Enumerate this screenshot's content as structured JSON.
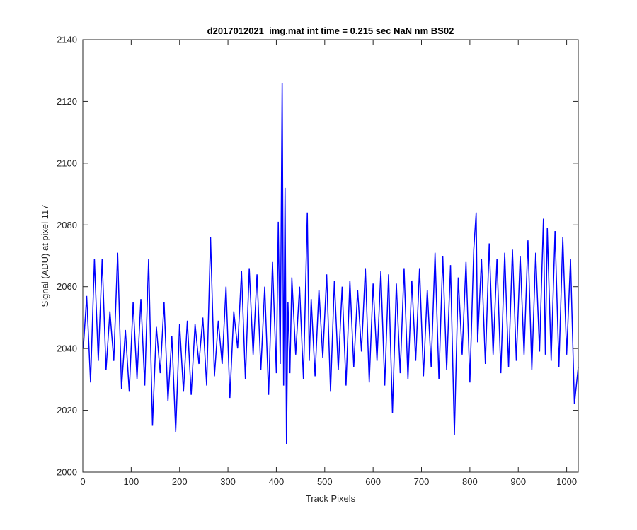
{
  "chart_data": {
    "type": "line",
    "title": "d2017012021_img.mat int time = 0.215 sec  NaN nm BS02",
    "xlabel": "Track Pixels",
    "ylabel": "Signal (ADU) at pixel 117",
    "xlim": [
      0,
      1024
    ],
    "ylim": [
      2000,
      2140
    ],
    "xticks": [
      0,
      100,
      200,
      300,
      400,
      500,
      600,
      700,
      800,
      900,
      1000
    ],
    "yticks": [
      2000,
      2020,
      2040,
      2060,
      2080,
      2100,
      2120,
      2140
    ],
    "grid": false,
    "series": [
      {
        "color": "#0000ff",
        "x": [
          1,
          8,
          16,
          24,
          32,
          40,
          48,
          56,
          64,
          72,
          80,
          88,
          96,
          104,
          112,
          120,
          128,
          136,
          144,
          152,
          160,
          168,
          176,
          184,
          192,
          200,
          208,
          216,
          224,
          232,
          240,
          248,
          256,
          264,
          272,
          280,
          288,
          296,
          304,
          312,
          320,
          328,
          336,
          344,
          352,
          360,
          368,
          376,
          384,
          392,
          400,
          404,
          408,
          412,
          415,
          418,
          421,
          424,
          428,
          432,
          440,
          448,
          456,
          464,
          468,
          472,
          480,
          488,
          496,
          504,
          512,
          520,
          528,
          536,
          544,
          552,
          560,
          568,
          576,
          584,
          592,
          600,
          608,
          616,
          624,
          632,
          640,
          648,
          656,
          664,
          672,
          680,
          688,
          696,
          704,
          712,
          720,
          728,
          736,
          744,
          752,
          760,
          768,
          776,
          784,
          792,
          800,
          808,
          813,
          816,
          824,
          832,
          840,
          848,
          856,
          864,
          872,
          880,
          888,
          896,
          904,
          912,
          920,
          928,
          936,
          944,
          952,
          956,
          960,
          968,
          976,
          984,
          992,
          1000,
          1008,
          1016,
          1024
        ],
        "values": [
          2040,
          2057,
          2029,
          2069,
          2036,
          2069,
          2033,
          2052,
          2036,
          2071,
          2027,
          2046,
          2026,
          2055,
          2030,
          2056,
          2028,
          2069,
          2015,
          2047,
          2032,
          2055,
          2023,
          2044,
          2013,
          2048,
          2026,
          2049,
          2025,
          2048,
          2035,
          2050,
          2028,
          2076,
          2031,
          2049,
          2035,
          2060,
          2024,
          2052,
          2040,
          2065,
          2030,
          2066,
          2038,
          2064,
          2033,
          2060,
          2025,
          2068,
          2032,
          2081,
          2035,
          2126,
          2028,
          2092,
          2009,
          2055,
          2032,
          2063,
          2038,
          2060,
          2030,
          2084,
          2036,
          2056,
          2031,
          2059,
          2037,
          2064,
          2026,
          2062,
          2033,
          2060,
          2028,
          2062,
          2034,
          2059,
          2039,
          2066,
          2029,
          2061,
          2036,
          2065,
          2028,
          2064,
          2019,
          2061,
          2032,
          2066,
          2030,
          2062,
          2036,
          2066,
          2031,
          2059,
          2034,
          2071,
          2030,
          2070,
          2033,
          2067,
          2012,
          2063,
          2038,
          2068,
          2029,
          2072,
          2084,
          2042,
          2069,
          2035,
          2074,
          2038,
          2069,
          2032,
          2071,
          2034,
          2072,
          2036,
          2070,
          2038,
          2075,
          2033,
          2071,
          2039,
          2082,
          2038,
          2079,
          2036,
          2078,
          2034,
          2076,
          2038,
          2069,
          2022,
          2034
        ]
      }
    ]
  }
}
